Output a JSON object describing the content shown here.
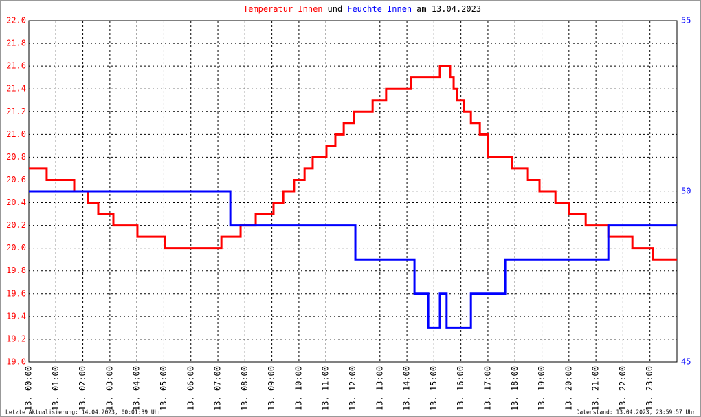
{
  "chart_data": {
    "type": "line",
    "title_parts": [
      {
        "text": "Temperatur Innen",
        "color": "#ff0000"
      },
      {
        "text": "und",
        "color": "#000000"
      },
      {
        "text": "Feuchte Innen",
        "color": "#0000ff"
      },
      {
        "text": "am 13.04.2023",
        "color": "#000000"
      }
    ],
    "xlim": [
      0,
      24
    ],
    "xticks": [
      {
        "value": 0,
        "label": "13. 00:00"
      },
      {
        "value": 1,
        "label": "13. 01:00"
      },
      {
        "value": 2,
        "label": "13. 02:00"
      },
      {
        "value": 3,
        "label": "13. 03:00"
      },
      {
        "value": 4,
        "label": "13. 04:00"
      },
      {
        "value": 5,
        "label": "13. 05:00"
      },
      {
        "value": 6,
        "label": "13. 06:00"
      },
      {
        "value": 7,
        "label": "13. 07:00"
      },
      {
        "value": 8,
        "label": "13. 08:00"
      },
      {
        "value": 9,
        "label": "13. 09:00"
      },
      {
        "value": 10,
        "label": "13. 10:00"
      },
      {
        "value": 11,
        "label": "13. 11:00"
      },
      {
        "value": 12,
        "label": "13. 12:00"
      },
      {
        "value": 13,
        "label": "13. 13:00"
      },
      {
        "value": 14,
        "label": "13. 14:00"
      },
      {
        "value": 15,
        "label": "13. 15:00"
      },
      {
        "value": 16,
        "label": "13. 16:00"
      },
      {
        "value": 17,
        "label": "13. 17:00"
      },
      {
        "value": 18,
        "label": "13. 18:00"
      },
      {
        "value": 19,
        "label": "13. 19:00"
      },
      {
        "value": 20,
        "label": "13. 20:00"
      },
      {
        "value": 21,
        "label": "13. 21:00"
      },
      {
        "value": 22,
        "label": "13. 22:00"
      },
      {
        "value": 23,
        "label": "13. 23:00"
      }
    ],
    "ylim": [
      19.0,
      22.0
    ],
    "yticks": [
      {
        "value": 19.0,
        "label": "19.0"
      },
      {
        "value": 19.2,
        "label": "19.2"
      },
      {
        "value": 19.4,
        "label": "19.4"
      },
      {
        "value": 19.6,
        "label": "19.6"
      },
      {
        "value": 19.8,
        "label": "19.8"
      },
      {
        "value": 20.0,
        "label": "20.0"
      },
      {
        "value": 20.2,
        "label": "20.2"
      },
      {
        "value": 20.4,
        "label": "20.4"
      },
      {
        "value": 20.6,
        "label": "20.6"
      },
      {
        "value": 20.8,
        "label": "20.8"
      },
      {
        "value": 21.0,
        "label": "21.0"
      },
      {
        "value": 21.2,
        "label": "21.2"
      },
      {
        "value": 21.4,
        "label": "21.4"
      },
      {
        "value": 21.6,
        "label": "21.6"
      },
      {
        "value": 21.8,
        "label": "21.8"
      },
      {
        "value": 22.0,
        "label": "22.0"
      }
    ],
    "y2lim": [
      45,
      55
    ],
    "y2ticks": [
      45,
      50,
      55
    ],
    "grid": true,
    "series": [
      {
        "color": "#ff0000",
        "axis": "y",
        "x": [
          0,
          0.66,
          0.66,
          1.68,
          1.68,
          2.19,
          2.19,
          2.57,
          2.57,
          3.13,
          3.13,
          4.02,
          4.02,
          5.04,
          5.04,
          7.13,
          7.13,
          7.84,
          7.84,
          8.4,
          8.4,
          9.06,
          9.06,
          9.42,
          9.42,
          9.82,
          9.82,
          10.21,
          10.21,
          10.51,
          10.51,
          11.02,
          11.02,
          11.35,
          11.35,
          11.66,
          11.66,
          12.04,
          12.04,
          12.73,
          12.73,
          13.23,
          13.23,
          14.15,
          14.15,
          15.22,
          15.22,
          15.6,
          15.6,
          15.73,
          15.73,
          15.86,
          15.86,
          16.11,
          16.11,
          16.37,
          16.37,
          16.7,
          16.7,
          17.0,
          17.0,
          17.89,
          17.89,
          18.48,
          18.48,
          18.91,
          18.91,
          19.5,
          19.5,
          20.0,
          20.0,
          20.62,
          20.62,
          21.46,
          21.46,
          22.35,
          22.35,
          23.11,
          23.11,
          24
        ],
        "values": [
          20.7,
          20.7,
          20.6,
          20.6,
          20.5,
          20.5,
          20.4,
          20.4,
          20.3,
          20.3,
          20.2,
          20.2,
          20.1,
          20.1,
          20.0,
          20.0,
          20.1,
          20.1,
          20.2,
          20.2,
          20.3,
          20.3,
          20.4,
          20.4,
          20.5,
          20.5,
          20.6,
          20.6,
          20.7,
          20.7,
          20.8,
          20.8,
          20.9,
          20.9,
          21.0,
          21.0,
          21.1,
          21.1,
          21.2,
          21.2,
          21.3,
          21.3,
          21.4,
          21.4,
          21.5,
          21.5,
          21.6,
          21.6,
          21.5,
          21.5,
          21.4,
          21.4,
          21.3,
          21.3,
          21.2,
          21.2,
          21.1,
          21.1,
          21.0,
          21.0,
          20.8,
          20.8,
          20.7,
          20.7,
          20.6,
          20.6,
          20.5,
          20.5,
          20.4,
          20.4,
          20.3,
          20.3,
          20.2,
          20.2,
          20.1,
          20.1,
          20.0,
          20.0,
          19.9,
          19.9
        ]
      },
      {
        "color": "#0000ff",
        "axis": "y2",
        "x": [
          0,
          7.46,
          7.46,
          12.09,
          12.09,
          14.28,
          14.28,
          14.79,
          14.79,
          15.22,
          15.22,
          15.47,
          15.47,
          16.37,
          16.37,
          17.64,
          17.64,
          21.46,
          21.46,
          24
        ],
        "values": [
          50,
          50,
          49,
          49,
          48,
          48,
          47,
          47,
          46,
          46,
          47,
          47,
          46,
          46,
          47,
          47,
          48,
          48,
          49,
          49
        ]
      }
    ]
  },
  "footer": {
    "left": "Letzte Aktualisierung: 14.04.2023, 00:01:39 Uhr",
    "right": "Datenstand: 13.04.2023, 23:59:57 Uhr"
  }
}
